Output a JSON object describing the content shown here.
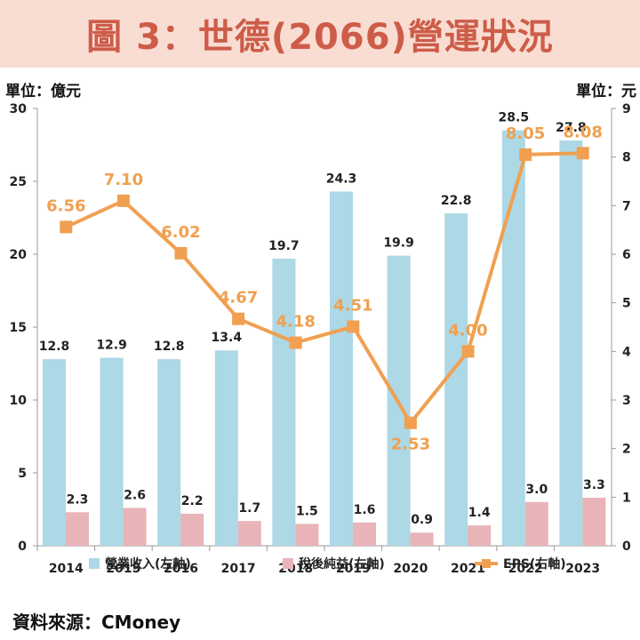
{
  "header": {
    "title": "圖 3：世德(2066)營運狀況"
  },
  "units": {
    "left": "單位：億元",
    "right": "單位：元"
  },
  "source": "資料來源：CMoney",
  "colors": {
    "revenue": "#add8e6",
    "net_income": "#e8b4b8",
    "eps": "#f0a050",
    "eps_label": "#f0a050",
    "title": "#cd5c49",
    "title_bg": "#f9ddd2"
  },
  "chart_data": {
    "type": "bar",
    "categories": [
      "2014",
      "2015",
      "2016",
      "2017",
      "2018",
      "2019",
      "2020",
      "2021",
      "2022",
      "2023"
    ],
    "series": [
      {
        "name": "營業收入(左軸)",
        "type": "bar",
        "axis": "left",
        "values": [
          12.8,
          12.9,
          12.8,
          13.4,
          19.7,
          24.3,
          19.9,
          22.8,
          28.5,
          27.8
        ],
        "labels": [
          "12.8",
          "12.9",
          "12.8",
          "13.4",
          "19.7",
          "24.3",
          "19.9",
          "22.8",
          "28.5",
          "27.8"
        ]
      },
      {
        "name": "稅後純益(左軸)",
        "type": "bar",
        "axis": "left",
        "values": [
          2.3,
          2.6,
          2.2,
          1.7,
          1.5,
          1.6,
          0.9,
          1.4,
          3.0,
          3.3
        ],
        "labels": [
          "2.3",
          "2.6",
          "2.2",
          "1.7",
          "1.5",
          "1.6",
          "0.9",
          "1.4",
          "3.0",
          "3.3"
        ]
      },
      {
        "name": "EPS(右軸)",
        "type": "line",
        "axis": "right",
        "values": [
          6.56,
          7.1,
          6.02,
          4.67,
          4.18,
          4.51,
          2.53,
          4.0,
          8.05,
          8.08
        ],
        "labels": [
          "6.56",
          "7.10",
          "6.02",
          "4.67",
          "4.18",
          "4.51",
          "2.53",
          "4.00",
          "8.05",
          "8.08"
        ]
      }
    ],
    "y_left": {
      "min": 0,
      "max": 30,
      "ticks": [
        "0",
        "5",
        "10",
        "15",
        "20",
        "25",
        "30"
      ]
    },
    "y_right": {
      "min": 0,
      "max": 9,
      "ticks": [
        "0",
        "1",
        "2",
        "3",
        "4",
        "5",
        "6",
        "7",
        "8",
        "9"
      ]
    },
    "grid": false,
    "legend_position": "bottom"
  }
}
